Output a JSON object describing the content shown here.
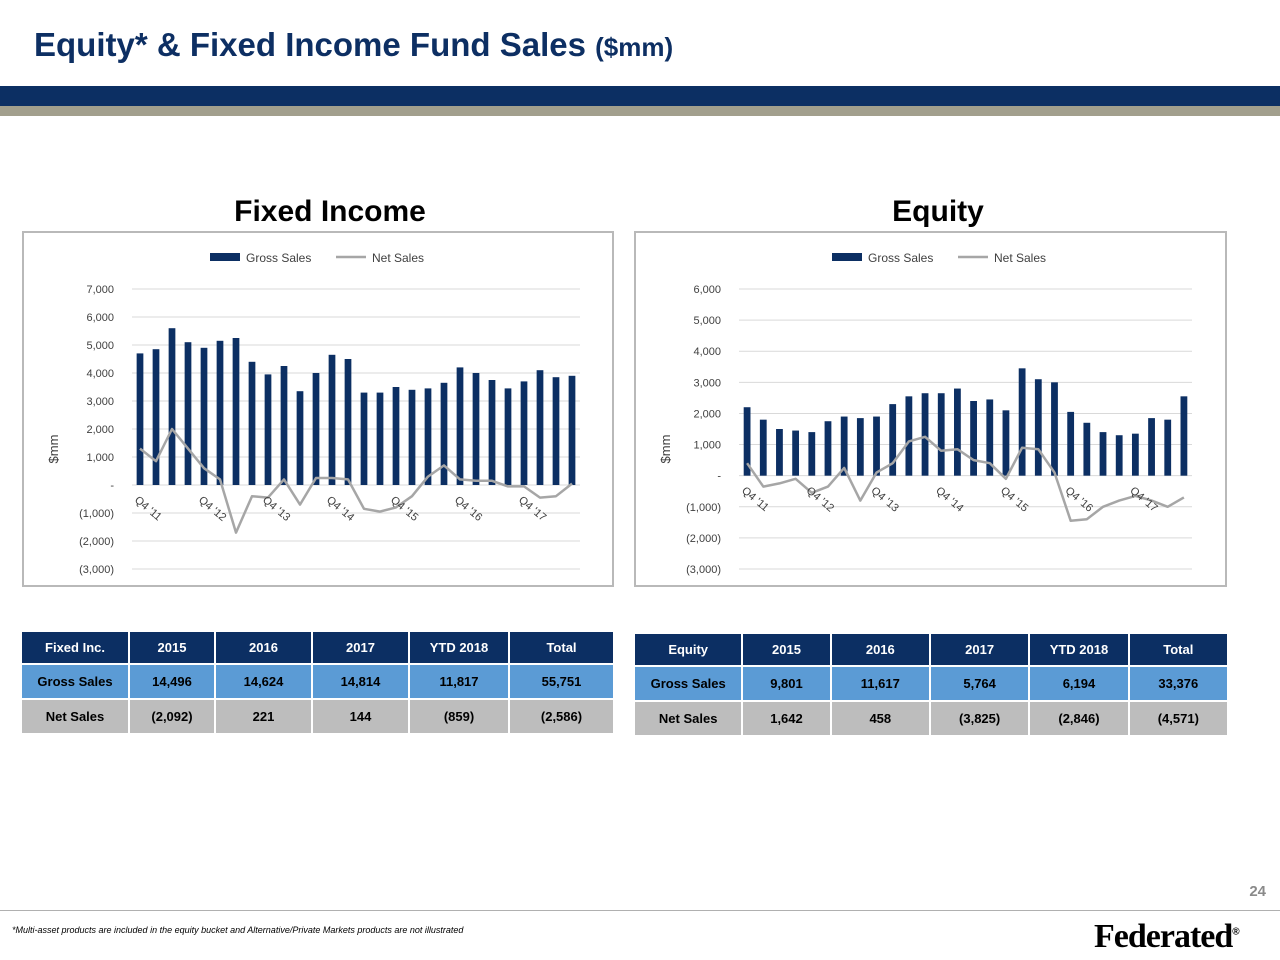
{
  "header": {
    "title_main": "Equity* & Fixed Income Fund Sales",
    "title_unit": "($mm)"
  },
  "colors": {
    "navy": "#0c2f63",
    "tan": "#a29f8d",
    "bar": "#0c2f63",
    "net_line": "#a6a6a6",
    "table_gross": "#5b9bd5",
    "table_net": "#bdbdbd"
  },
  "chart_data": [
    {
      "type": "bar",
      "title": "Fixed Income",
      "ylabel": "$mm",
      "ylim": [
        -3000,
        7000
      ],
      "yticks": [
        7000,
        6000,
        5000,
        4000,
        3000,
        2000,
        1000,
        0,
        -1000,
        -2000,
        -3000
      ],
      "ytick_labels": [
        "7,000",
        "6,000",
        "5,000",
        "4,000",
        "3,000",
        "2,000",
        "1,000",
        "-",
        "(1,000)",
        "(2,000)",
        "(3,000)"
      ],
      "categories": [
        "Q4 '11",
        "",
        "",
        "",
        "Q4 '12",
        "",
        "",
        "",
        "Q4 '13",
        "",
        "",
        "",
        "Q4 '14",
        "",
        "",
        "",
        "Q4 '15",
        "",
        "",
        "",
        "Q4 '16",
        "",
        "",
        "",
        "Q4 '17",
        "",
        "",
        ""
      ],
      "xtick_labels": [
        "Q4 '11",
        "Q4 '12",
        "Q4 '13",
        "Q4 '14",
        "Q4 '15",
        "Q4 '16",
        "Q4 '17"
      ],
      "legend_position": "top",
      "series": [
        {
          "name": "Gross Sales",
          "kind": "bar",
          "values": [
            4700,
            4850,
            5600,
            5100,
            4900,
            5150,
            5250,
            4400,
            3950,
            4250,
            3350,
            4000,
            4650,
            4500,
            3300,
            3300,
            3500,
            3400,
            3450,
            3650,
            4200,
            4000,
            3750,
            3450,
            3700,
            4100,
            3850,
            3900
          ]
        },
        {
          "name": "Net Sales",
          "kind": "line",
          "values": [
            1300,
            850,
            2000,
            1300,
            600,
            200,
            -1700,
            -400,
            -450,
            200,
            -700,
            250,
            250,
            200,
            -850,
            -950,
            -800,
            -400,
            300,
            700,
            200,
            150,
            150,
            -50,
            -50,
            -450,
            -400,
            50
          ]
        }
      ]
    },
    {
      "type": "bar",
      "title": "Equity",
      "ylabel": "$mm",
      "ylim": [
        -3000,
        6000
      ],
      "yticks": [
        6000,
        5000,
        4000,
        3000,
        2000,
        1000,
        0,
        -1000,
        -2000,
        -3000
      ],
      "ytick_labels": [
        "6,000",
        "5,000",
        "4,000",
        "3,000",
        "2,000",
        "1,000",
        "-",
        "(1,000)",
        "(2,000)",
        "(3,000)"
      ],
      "categories": [
        "Q4 '11",
        "",
        "",
        "",
        "Q4 '12",
        "",
        "",
        "",
        "Q4 '13",
        "",
        "",
        "",
        "Q4 '14",
        "",
        "",
        "",
        "Q4 '15",
        "",
        "",
        "",
        "Q4 '16",
        "",
        "",
        "",
        "Q4 '17",
        "",
        "",
        ""
      ],
      "xtick_labels": [
        "Q4 '11",
        "Q4 '12",
        "Q4 '13",
        "Q4 '14",
        "Q4 '15",
        "Q4 '16",
        "Q4 '17"
      ],
      "legend_position": "top",
      "series": [
        {
          "name": "Gross Sales",
          "kind": "bar",
          "values": [
            2200,
            1800,
            1500,
            1450,
            1400,
            1750,
            1900,
            1850,
            1900,
            2300,
            2550,
            2650,
            2650,
            2800,
            2400,
            2450,
            2100,
            3450,
            3100,
            3000,
            2050,
            1700,
            1400,
            1300,
            1350,
            1850,
            1800,
            2550
          ]
        },
        {
          "name": "Net Sales",
          "kind": "line",
          "values": [
            400,
            -350,
            -250,
            -100,
            -550,
            -350,
            250,
            -800,
            100,
            400,
            1100,
            1250,
            800,
            850,
            500,
            400,
            -100,
            900,
            850,
            100,
            -1450,
            -1400,
            -1000,
            -800,
            -650,
            -800,
            -1000,
            -700
          ]
        }
      ]
    }
  ],
  "tables": {
    "fixed": {
      "headers": [
        "Fixed Inc.",
        "2015",
        "2016",
        "2017",
        "YTD 2018",
        "Total"
      ],
      "gross": [
        "Gross Sales",
        "14,496",
        "14,624",
        "14,814",
        "11,817",
        "55,751"
      ],
      "net": [
        "Net Sales",
        "(2,092)",
        "221",
        "144",
        "(859)",
        "(2,586)"
      ]
    },
    "equity": {
      "headers": [
        "Equity",
        "2015",
        "2016",
        "2017",
        "YTD 2018",
        "Total"
      ],
      "gross": [
        "Gross Sales",
        "9,801",
        "11,617",
        "5,764",
        "6,194",
        "33,376"
      ],
      "net": [
        "Net Sales",
        "1,642",
        "458",
        "(3,825)",
        "(2,846)",
        "(4,571)"
      ]
    }
  },
  "footer": {
    "page_number": "24",
    "footnote": "*Multi-asset products are included in the equity bucket and Alternative/Private Markets products are not illustrated",
    "logo_text": "Federated",
    "logo_mark": "®"
  }
}
